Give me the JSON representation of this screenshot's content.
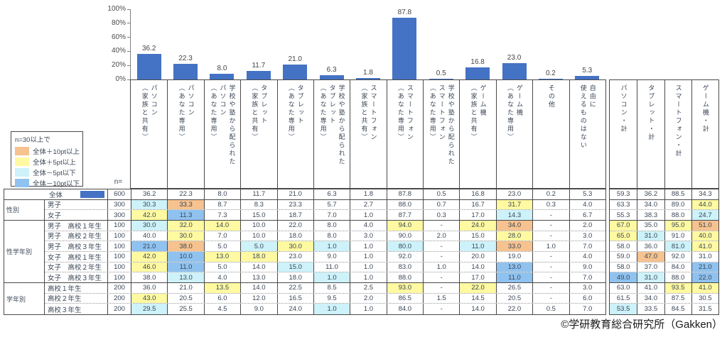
{
  "chart_data": {
    "type": "bar",
    "title": "",
    "categories": [
      "パソコン（家族と共有）",
      "パソコン（あなた専用）",
      "学校や塾から配られたパソコン（あなた専用）",
      "タブレット（家族と共有）",
      "タブレット（あなた専用）",
      "学校や塾から配られたタブレット（あなた専用）",
      "スマートフォン（家族と共有）",
      "スマートフォン（あなた専用）",
      "学校や塾から配られたスマートフォン（あなた専用）",
      "ゲーム機（家族と共有）",
      "ゲーム機（あなた専用）",
      "その他",
      "自由に使えるものはない"
    ],
    "values": [
      36.2,
      22.3,
      8.0,
      11.7,
      21.0,
      6.3,
      1.8,
      87.8,
      0.5,
      16.8,
      23.0,
      0.2,
      5.3
    ],
    "xlabel": "",
    "ylabel": "",
    "unit": "%",
    "ylim": [
      0,
      100
    ],
    "yticks": [
      "0%",
      "20%",
      "40%",
      "60%",
      "80%",
      "100%"
    ],
    "grid": false,
    "value_labels": true,
    "bar_color": "#4472C4"
  },
  "column_headers": [
    {
      "lines": [
        "パソコン",
        "（家族と共有）"
      ]
    },
    {
      "lines": [
        "パソコン",
        "（あなた専用）"
      ]
    },
    {
      "lines": [
        "学校や塾から配られた",
        "パソコン",
        "（あなた専用）"
      ]
    },
    {
      "lines": [
        "タブレット",
        "（家族と共有）"
      ]
    },
    {
      "lines": [
        "タブレット",
        "（あなた専用）"
      ]
    },
    {
      "lines": [
        "学校や塾から配られた",
        "タブレット",
        "（あなた専用）"
      ]
    },
    {
      "lines": [
        "スマートフォン",
        "（家族と共有）"
      ]
    },
    {
      "lines": [
        "スマートフォン",
        "（あなた専用）"
      ]
    },
    {
      "lines": [
        "学校や塾から配られた",
        "スマートフォン",
        "（あなた専用）"
      ]
    },
    {
      "lines": [
        "ゲーム機",
        "（家族と共有）"
      ]
    },
    {
      "lines": [
        "ゲーム機",
        "（あなた専用）"
      ]
    },
    {
      "lines": [
        "その他"
      ]
    },
    {
      "lines": [
        "自由に",
        "使えるものはない"
      ]
    }
  ],
  "summary_headers": [
    {
      "lines": [
        "パソコン・計"
      ]
    },
    {
      "lines": [
        "タブレット・計"
      ]
    },
    {
      "lines": [
        "スマートフォン・計"
      ]
    },
    {
      "lines": [
        "ゲーム機・計"
      ]
    }
  ],
  "legend": {
    "title": "n=30以上で",
    "items": [
      {
        "label": "全体＋10pt以上",
        "key": "p10"
      },
      {
        "label": "全体＋5pt以上",
        "key": "p5"
      },
      {
        "label": "全体－5pt以下",
        "key": "m5"
      },
      {
        "label": "全体－10pt以下",
        "key": "m10"
      }
    ]
  },
  "table": {
    "n_header": "n=",
    "groups": [
      {
        "label": "性別",
        "start": 1,
        "span": 2
      },
      {
        "label": "性学年別",
        "start": 3,
        "span": 6
      },
      {
        "label": "学年別",
        "start": 9,
        "span": 3
      }
    ],
    "rows": [
      {
        "label": "全体",
        "n": "600",
        "swatch": true,
        "values": [
          "36.2",
          "22.3",
          "8.0",
          "11.7",
          "21.0",
          "6.3",
          "1.8",
          "87.8",
          "0.5",
          "16.8",
          "23.0",
          "0.2",
          "5.3"
        ],
        "summary": [
          "59.3",
          "36.2",
          "88.5",
          "34.3"
        ]
      },
      {
        "label": "男子",
        "n": "300",
        "values": [
          "30.3",
          "33.3",
          "8.7",
          "8.3",
          "23.3",
          "5.7",
          "2.7",
          "88.0",
          "0.7",
          "16.7",
          "31.7",
          "0.3",
          "4.0"
        ],
        "summary": [
          "63.3",
          "34.0",
          "89.0",
          "44.0"
        ]
      },
      {
        "label": "女子",
        "n": "300",
        "values": [
          "42.0",
          "11.3",
          "7.3",
          "15.0",
          "18.7",
          "7.0",
          "1.0",
          "87.7",
          "0.3",
          "17.0",
          "14.3",
          "-",
          "6.7"
        ],
        "summary": [
          "55.3",
          "38.3",
          "88.0",
          "24.7"
        ]
      },
      {
        "label": "男子　高校１年生",
        "n": "100",
        "values": [
          "30.0",
          "32.0",
          "14.0",
          "10.0",
          "22.0",
          "8.0",
          "4.0",
          "94.0",
          "-",
          "24.0",
          "34.0",
          "-",
          "2.0"
        ],
        "summary": [
          "67.0",
          "35.0",
          "95.0",
          "51.0"
        ]
      },
      {
        "label": "男子　高校２年生",
        "n": "100",
        "values": [
          "40.0",
          "30.0",
          "7.0",
          "10.0",
          "18.0",
          "8.0",
          "3.0",
          "90.0",
          "2.0",
          "15.0",
          "28.0",
          "-",
          "3.0"
        ],
        "summary": [
          "65.0",
          "31.0",
          "91.0",
          "40.0"
        ]
      },
      {
        "label": "男子　高校３年生",
        "n": "100",
        "values": [
          "21.0",
          "38.0",
          "5.0",
          "5.0",
          "30.0",
          "1.0",
          "1.0",
          "80.0",
          "-",
          "11.0",
          "33.0",
          "1.0",
          "7.0"
        ],
        "summary": [
          "58.0",
          "36.0",
          "81.0",
          "41.0"
        ]
      },
      {
        "label": "女子　高校１年生",
        "n": "100",
        "values": [
          "42.0",
          "10.0",
          "13.0",
          "18.0",
          "23.0",
          "9.0",
          "1.0",
          "92.0",
          "-",
          "20.0",
          "19.0",
          "-",
          "4.0"
        ],
        "summary": [
          "59.0",
          "47.0",
          "92.0",
          "31.0"
        ]
      },
      {
        "label": "女子　高校２年生",
        "n": "100",
        "values": [
          "46.0",
          "11.0",
          "5.0",
          "14.0",
          "15.0",
          "11.0",
          "1.0",
          "83.0",
          "1.0",
          "14.0",
          "13.0",
          "-",
          "9.0"
        ],
        "summary": [
          "58.0",
          "37.0",
          "84.0",
          "21.0"
        ]
      },
      {
        "label": "女子　高校３年生",
        "n": "100",
        "values": [
          "38.0",
          "13.0",
          "4.0",
          "13.0",
          "18.0",
          "1.0",
          "1.0",
          "88.0",
          "-",
          "17.0",
          "11.0",
          "-",
          "7.0"
        ],
        "summary": [
          "49.0",
          "31.0",
          "88.0",
          "22.0"
        ]
      },
      {
        "label": "高校１年生",
        "n": "200",
        "values": [
          "36.0",
          "21.0",
          "13.5",
          "14.0",
          "22.5",
          "8.5",
          "2.5",
          "93.0",
          "-",
          "22.0",
          "26.5",
          "-",
          "3.0"
        ],
        "summary": [
          "63.0",
          "41.0",
          "93.5",
          "41.0"
        ]
      },
      {
        "label": "高校２年生",
        "n": "200",
        "values": [
          "43.0",
          "20.5",
          "6.0",
          "12.0",
          "16.5",
          "9.5",
          "2.0",
          "86.5",
          "1.5",
          "14.5",
          "20.5",
          "-",
          "6.0"
        ],
        "summary": [
          "61.5",
          "34.0",
          "87.5",
          "30.5"
        ]
      },
      {
        "label": "高校３年生",
        "n": "200",
        "values": [
          "29.5",
          "25.5",
          "4.5",
          "9.0",
          "24.0",
          "1.0",
          "1.0",
          "84.0",
          "-",
          "14.0",
          "22.0",
          "0.5",
          "7.0"
        ],
        "summary": [
          "53.5",
          "33.5",
          "84.5",
          "31.5"
        ]
      }
    ]
  },
  "footer": {
    "copyright": "©学研教育総合研究所（Gakken）"
  },
  "colors": {
    "bar": "#4472C4",
    "p10": "#F6C28F",
    "p5": "#FFF9A1",
    "m5": "#CDF2F9",
    "m10": "#8FC2EF"
  }
}
